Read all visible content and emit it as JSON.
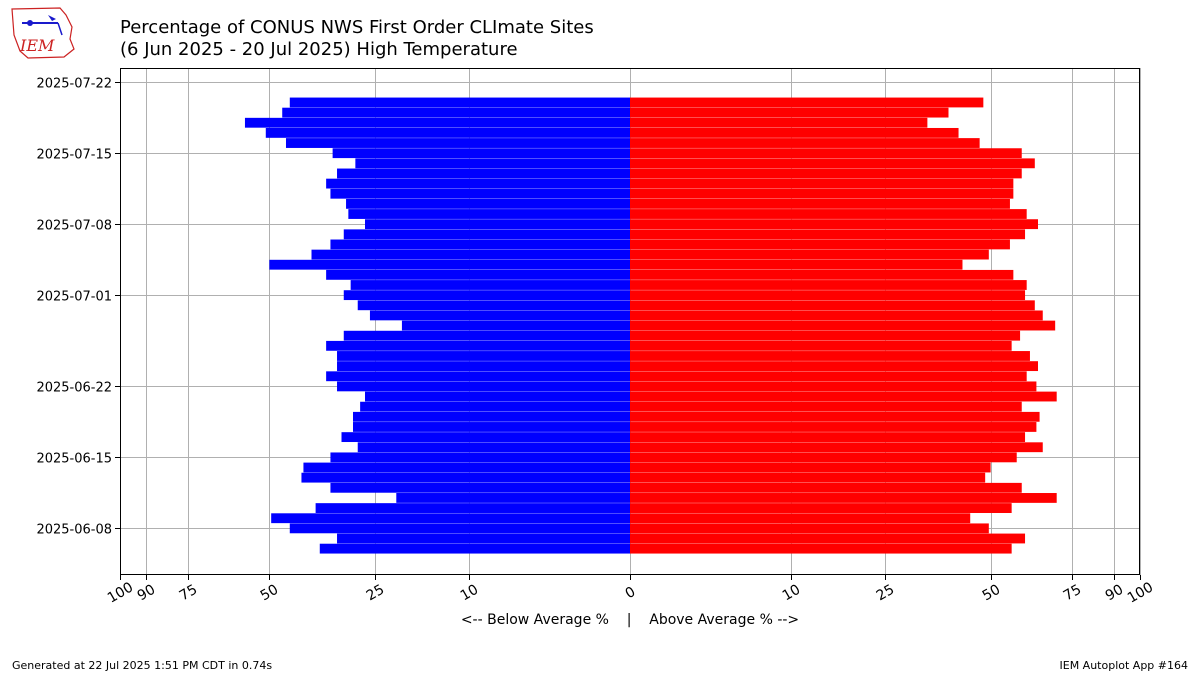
{
  "title_line1": "Percentage of CONUS NWS First Order CLImate Sites",
  "title_line2": "(6 Jun 2025 - 20 Jul 2025) High Temperature",
  "logo_text": "IEM",
  "footer_left": "Generated at 22 Jul 2025 1:51 PM CDT in 0.74s",
  "footer_right": "IEM Autoplot App #164",
  "colors": {
    "below": "#0000ff",
    "above": "#ff0000",
    "grid": "#b0b0b0",
    "logo": "#cc2222"
  },
  "chart_data": {
    "type": "bar",
    "orientation": "horizontal-diverging",
    "xlabel": "<-- Below Average %    |    Above Average % -->",
    "x_ticks": [
      -100,
      -90,
      -75,
      -50,
      -25,
      -10,
      0,
      10,
      25,
      50,
      75,
      90,
      100
    ],
    "x_tick_labels": [
      "100",
      "90",
      "75",
      "50",
      "25",
      "10",
      "0",
      "10",
      "25",
      "50",
      "75",
      "90",
      "100"
    ],
    "y_tick_labels": [
      "2025-06-08",
      "2025-06-15",
      "2025-06-22",
      "2025-07-01",
      "2025-07-08",
      "2025-07-15",
      "2025-07-22"
    ],
    "grid": true,
    "dates": [
      "2025-06-06",
      "2025-06-07",
      "2025-06-08",
      "2025-06-09",
      "2025-06-10",
      "2025-06-11",
      "2025-06-12",
      "2025-06-13",
      "2025-06-14",
      "2025-06-15",
      "2025-06-16",
      "2025-06-17",
      "2025-06-18",
      "2025-06-19",
      "2025-06-20",
      "2025-06-21",
      "2025-06-22",
      "2025-06-23",
      "2025-06-24",
      "2025-06-25",
      "2025-06-26",
      "2025-06-27",
      "2025-06-28",
      "2025-06-29",
      "2025-06-30",
      "2025-07-01",
      "2025-07-02",
      "2025-07-03",
      "2025-07-04",
      "2025-07-05",
      "2025-07-06",
      "2025-07-07",
      "2025-07-08",
      "2025-07-09",
      "2025-07-10",
      "2025-07-11",
      "2025-07-12",
      "2025-07-13",
      "2025-07-14",
      "2025-07-15",
      "2025-07-16",
      "2025-07-17",
      "2025-07-18",
      "2025-07-19",
      "2025-07-20"
    ],
    "series": [
      {
        "name": "Below Average %",
        "values": [
          37,
          33,
          44.5,
          49.5,
          38,
          21,
          34.5,
          41.5,
          41,
          34.5,
          28.5,
          32,
          29.5,
          29.5,
          28,
          27,
          33,
          35.5,
          33,
          33,
          35.5,
          31.5,
          20,
          26,
          28.5,
          31.5,
          30,
          35.5,
          50,
          39,
          34.5,
          31.5,
          27,
          30.5,
          31,
          34.5,
          35.5,
          33,
          29,
          34,
          45.5,
          51,
          57,
          46.5,
          44.5
        ]
      },
      {
        "name": "Above Average %",
        "values": [
          56,
          60,
          49.5,
          44.5,
          56,
          70,
          59,
          48.5,
          50,
          57.5,
          65.5,
          60,
          63.5,
          64.5,
          59,
          70,
          63.5,
          60.5,
          64,
          61.5,
          56,
          58.5,
          69.5,
          65.5,
          63,
          60,
          60.5,
          56.5,
          42.5,
          49.5,
          55.5,
          60,
          64,
          60.5,
          55.5,
          56.5,
          56.5,
          59,
          63,
          59,
          47,
          41.5,
          34,
          39,
          48
        ]
      }
    ]
  }
}
